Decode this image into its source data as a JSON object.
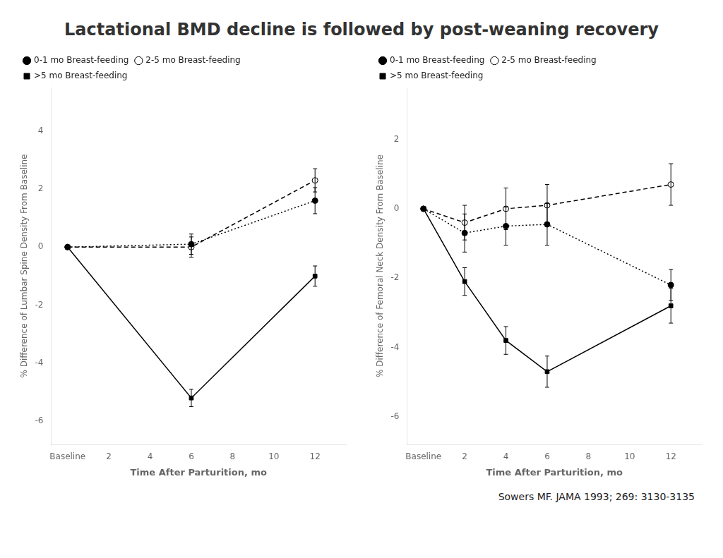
{
  "title": "Lactational BMD decline is followed by post-weaning recovery",
  "annotations": [
    "Sowers MF. JAMA 1993; 269: 3130-3135"
  ],
  "chart_data": [
    {
      "type": "line",
      "xlabel": "Time After Parturition, mo",
      "ylabel": "% Difference of Lumbar Spine Density From Baseline",
      "xlim": [
        -0.8,
        13.5
      ],
      "xticks": [
        {
          "value": 0,
          "label": "Baseline"
        },
        2,
        4,
        6,
        8,
        10,
        12
      ],
      "ylim": [
        -6.8,
        5.5
      ],
      "yticks": [
        -6,
        -4,
        -2,
        0,
        2,
        4
      ],
      "grid": false,
      "legend": "upper left",
      "series": [
        {
          "name": "0-1 mo Breast-feeding",
          "color": "#000000",
          "marker": "circle",
          "line_style": "dotted",
          "x": [
            0,
            6,
            12
          ],
          "values": [
            0.0,
            0.1,
            1.6
          ],
          "yerr": [
            0.05,
            0.35,
            0.45
          ]
        },
        {
          "name": "2-5 mo Breast-feeding",
          "color": "#000000",
          "marker": "open circle",
          "line_style": "dashed",
          "x": [
            0,
            6,
            12
          ],
          "values": [
            0.0,
            0.0,
            2.3
          ],
          "yerr": [
            0.05,
            0.35,
            0.4
          ]
        },
        {
          "name": ">5 mo Breast-feeding",
          "color": "#000000",
          "marker": "square",
          "line_style": "solid",
          "x": [
            0,
            6,
            12
          ],
          "values": [
            0.0,
            -5.2,
            -1.0
          ],
          "yerr": [
            0.05,
            0.3,
            0.35
          ]
        }
      ]
    },
    {
      "type": "line",
      "xlabel": "Time After Parturition, mo",
      "ylabel": "% Difference of Femoral Neck Density From Baseline",
      "xlim": [
        -0.8,
        13.5
      ],
      "xticks": [
        {
          "value": 0,
          "label": "Baseline"
        },
        2,
        4,
        6,
        8,
        10,
        12
      ],
      "ylim": [
        -6.8,
        3.5
      ],
      "yticks": [
        -6,
        -4,
        -2,
        0,
        2
      ],
      "grid": false,
      "legend": "upper left",
      "series": [
        {
          "name": "0-1 mo Breast-feeding",
          "color": "#000000",
          "marker": "circle",
          "line_style": "dotted",
          "x": [
            0,
            2,
            4,
            6,
            12
          ],
          "values": [
            0.0,
            -0.7,
            -0.5,
            -0.45,
            -2.2
          ],
          "yerr": [
            0.05,
            0.55,
            0.55,
            0.6,
            0.45
          ]
        },
        {
          "name": "2-5 mo Breast-feeding",
          "color": "#000000",
          "marker": "open circle",
          "line_style": "dashed",
          "x": [
            0,
            2,
            4,
            6,
            12
          ],
          "values": [
            0.0,
            -0.4,
            0.0,
            0.1,
            0.7
          ],
          "yerr": [
            0.05,
            0.5,
            0.6,
            0.6,
            0.6
          ]
        },
        {
          "name": ">5 mo Breast-feeding",
          "color": "#000000",
          "marker": "square",
          "line_style": "solid",
          "x": [
            0,
            2,
            4,
            6,
            12
          ],
          "values": [
            0.0,
            -2.1,
            -3.8,
            -4.7,
            -2.8
          ],
          "yerr": [
            0.05,
            0.4,
            0.4,
            0.45,
            0.5
          ]
        }
      ]
    }
  ]
}
